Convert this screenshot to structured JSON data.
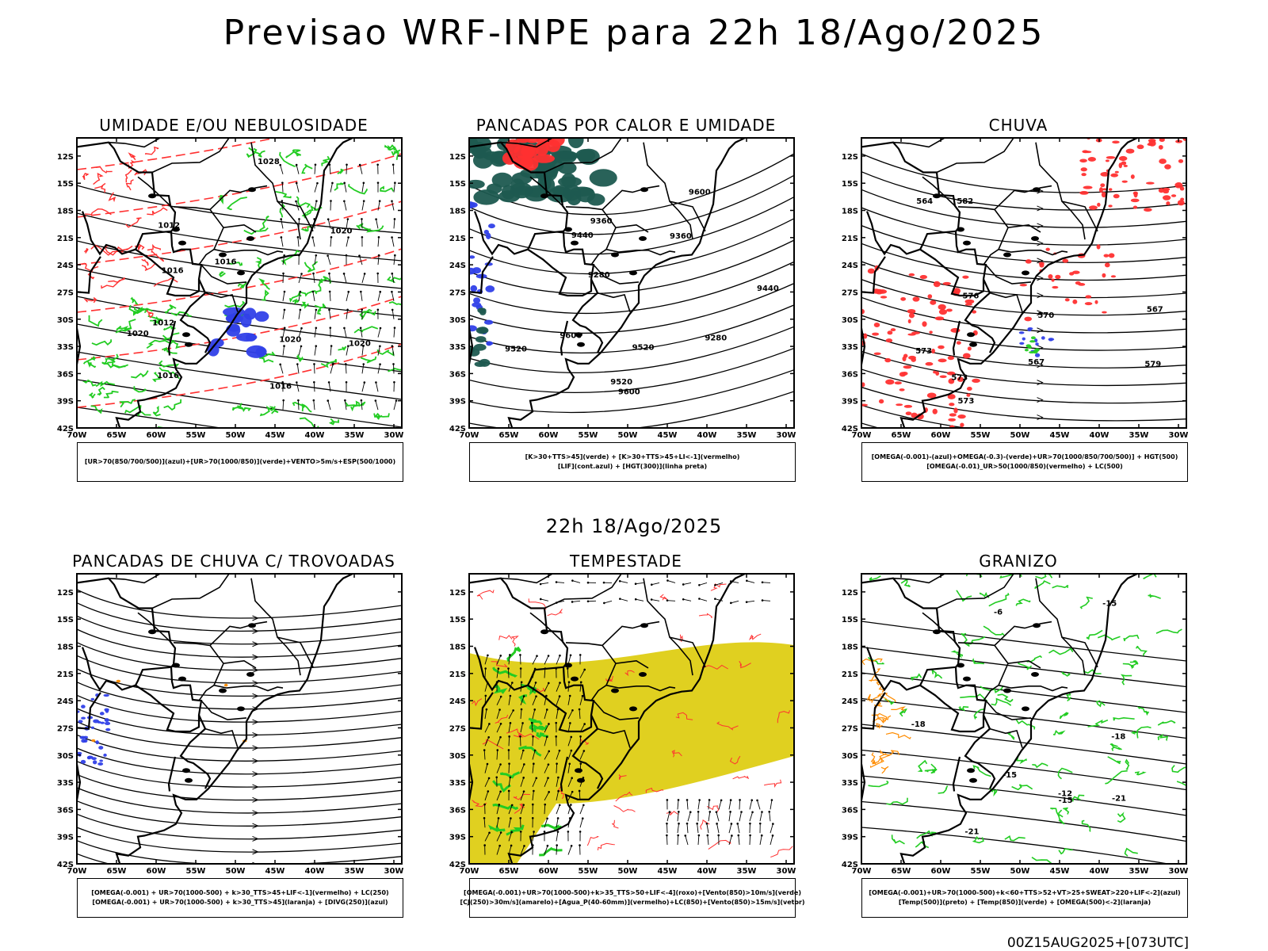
{
  "header": {
    "title": "Previsao WRF-INPE  para 22h 18/Ago/2025"
  },
  "mid_time": "22h 18/Ago/2025",
  "footer": "00Z15AUG2025+[073UTC]",
  "axes": {
    "lat_ticks": [
      "12S",
      "15S",
      "18S",
      "21S",
      "24S",
      "27S",
      "30S",
      "33S",
      "36S",
      "39S",
      "42S"
    ],
    "lon_ticks": [
      "70W",
      "65W",
      "60W",
      "55W",
      "50W",
      "45W",
      "40W",
      "35W",
      "30W"
    ]
  },
  "colors": {
    "umidade_alta": "#3040e8",
    "umidade_baixa": "#22cc22",
    "vermelho": "#ff3030",
    "amarelo": "#e0d020",
    "laranja": "#ff8c00",
    "verde_escuro": "#1e5a50"
  },
  "panels": [
    {
      "title": "UMIDADE E/OU NEBULOSIDADE",
      "legend": [
        "[UR>70(850/700/500)](azul)+[UR>70(1000/850)](verde)+VENTO>5m/s+ESP(500/1000)"
      ],
      "contour_labels": [
        "1016",
        "1020",
        "1020",
        "1012",
        "1016",
        "1020",
        "1016",
        "1028",
        "1016",
        "1012",
        "1020"
      ]
    },
    {
      "title": "PANCADAS POR CALOR E UMIDADE",
      "legend": [
        "[K>30+TTS>45](verde)  +  [K>30+TTS>45+LI<-1](vermelho)",
        "[LIF](cont.azul)  +  [HGT(300)](linha preta)"
      ],
      "contour_labels": [
        "9600",
        "9600",
        "9520",
        "9600",
        "9520",
        "9520",
        "9440",
        "9440",
        "9360",
        "9360",
        "9280",
        "9280"
      ]
    },
    {
      "title": "CHUVA",
      "legend": [
        "[OMEGA(-0.001)-(azul)+OMEGA(-0.3)-(verde)+UR>70(1000/850/700/500)]  +  HGT(500)",
        "[OMEGA(-0.01)_UR>50(1000/850)(vermelho)  +  LC(500)"
      ],
      "contour_labels": [
        "576",
        "582",
        "579",
        "573",
        "573",
        "573",
        "570",
        "567",
        "564",
        "567"
      ]
    },
    {
      "title": "PANCADAS DE CHUVA C/ TROVOADAS",
      "legend": [
        "[OMEGA(-0.001)  +  UR>70(1000-500)  +  k>30_TTS>45+LIF<-1](vermelho)  +  LC(250)",
        "[OMEGA(-0.001)  +  UR>70(1000-500)  +  k>30_TTS>45](laranja)  +  [DIVG(250)](azul)"
      ],
      "contour_labels": []
    },
    {
      "title": "TEMPESTADE",
      "legend": [
        "[OMEGA(-0.001)+UR>70(1000-500)+k>35_TTS>50+LIF<-4](roxo)+[Vento(850)>10m/s](verde)",
        "[CJ(250)>30m/s](amarelo)+[Agua_P(40-60mm)](vermelho)+LC(850)+[Vento(850)>15m/s](vetor)"
      ],
      "contour_labels": []
    },
    {
      "title": "GRANIZO",
      "legend": [
        "[OMEGA(-0.001)+UR>70(1000-500)+k<60+TTS>52+VT>25+SWEAT>220+LIF<-2](azul)",
        "[Temp(500)](preto)  +  [Temp(850)](verde)  +  [OMEGA(500)<-2](laranja)"
      ],
      "contour_labels": [
        "-6",
        "-12",
        "-15",
        "-18",
        "-15",
        "-21",
        "-21",
        "-18",
        "-15"
      ]
    }
  ]
}
